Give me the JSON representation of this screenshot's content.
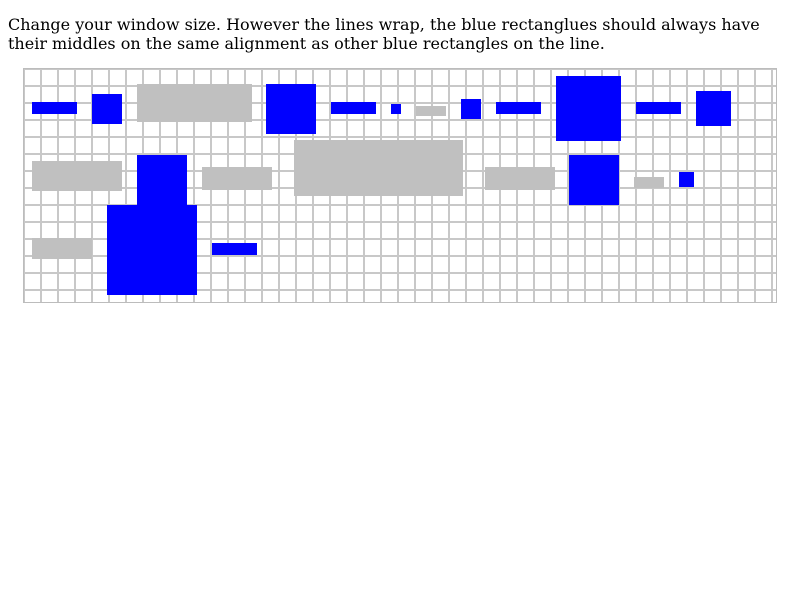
{
  "instructions": "Change your window size. However the lines wrap, the blue rectanglues should always have their middles on the same alignment as other blue rectangles on the line.",
  "colors": {
    "blue": "#0000ff",
    "gray": "#c0c0c0",
    "grid_line": "#c8c8c8"
  }
}
